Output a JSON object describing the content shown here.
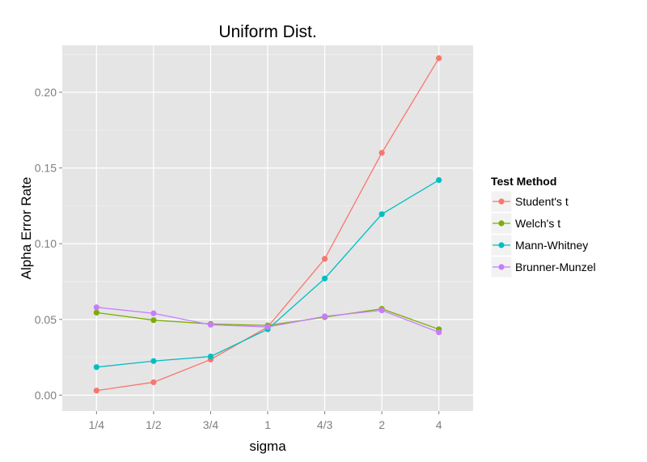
{
  "chart_data": {
    "type": "line",
    "title": "Uniform Dist.",
    "xlabel": "sigma",
    "ylabel": "Alpha Error Rate",
    "categories": [
      "1/4",
      "1/2",
      "3/4",
      "1",
      "4/3",
      "2",
      "4"
    ],
    "ylim": [
      -0.0105,
      0.231
    ],
    "yticks": [
      0.0,
      0.05,
      0.1,
      0.15,
      0.2
    ],
    "ytick_labels": [
      "0.00",
      "0.05",
      "0.10",
      "0.15",
      "0.20"
    ],
    "grid": true,
    "legend": {
      "title": "Test Method",
      "position": "right"
    },
    "series": [
      {
        "name": "Student's t",
        "color": "#F8766D",
        "values": [
          0.003,
          0.0085,
          0.0235,
          0.045,
          0.09,
          0.16,
          0.2225
        ]
      },
      {
        "name": "Welch's t",
        "color": "#7CAE00",
        "values": [
          0.0545,
          0.0495,
          0.047,
          0.046,
          0.0515,
          0.057,
          0.0435
        ]
      },
      {
        "name": "Mann-Whitney",
        "color": "#00BFC4",
        "values": [
          0.0185,
          0.0225,
          0.0255,
          0.0435,
          0.077,
          0.1195,
          0.142
        ]
      },
      {
        "name": "Brunner-Munzel",
        "color": "#C77CFF",
        "values": [
          0.058,
          0.054,
          0.0465,
          0.045,
          0.052,
          0.056,
          0.0415
        ]
      }
    ]
  }
}
